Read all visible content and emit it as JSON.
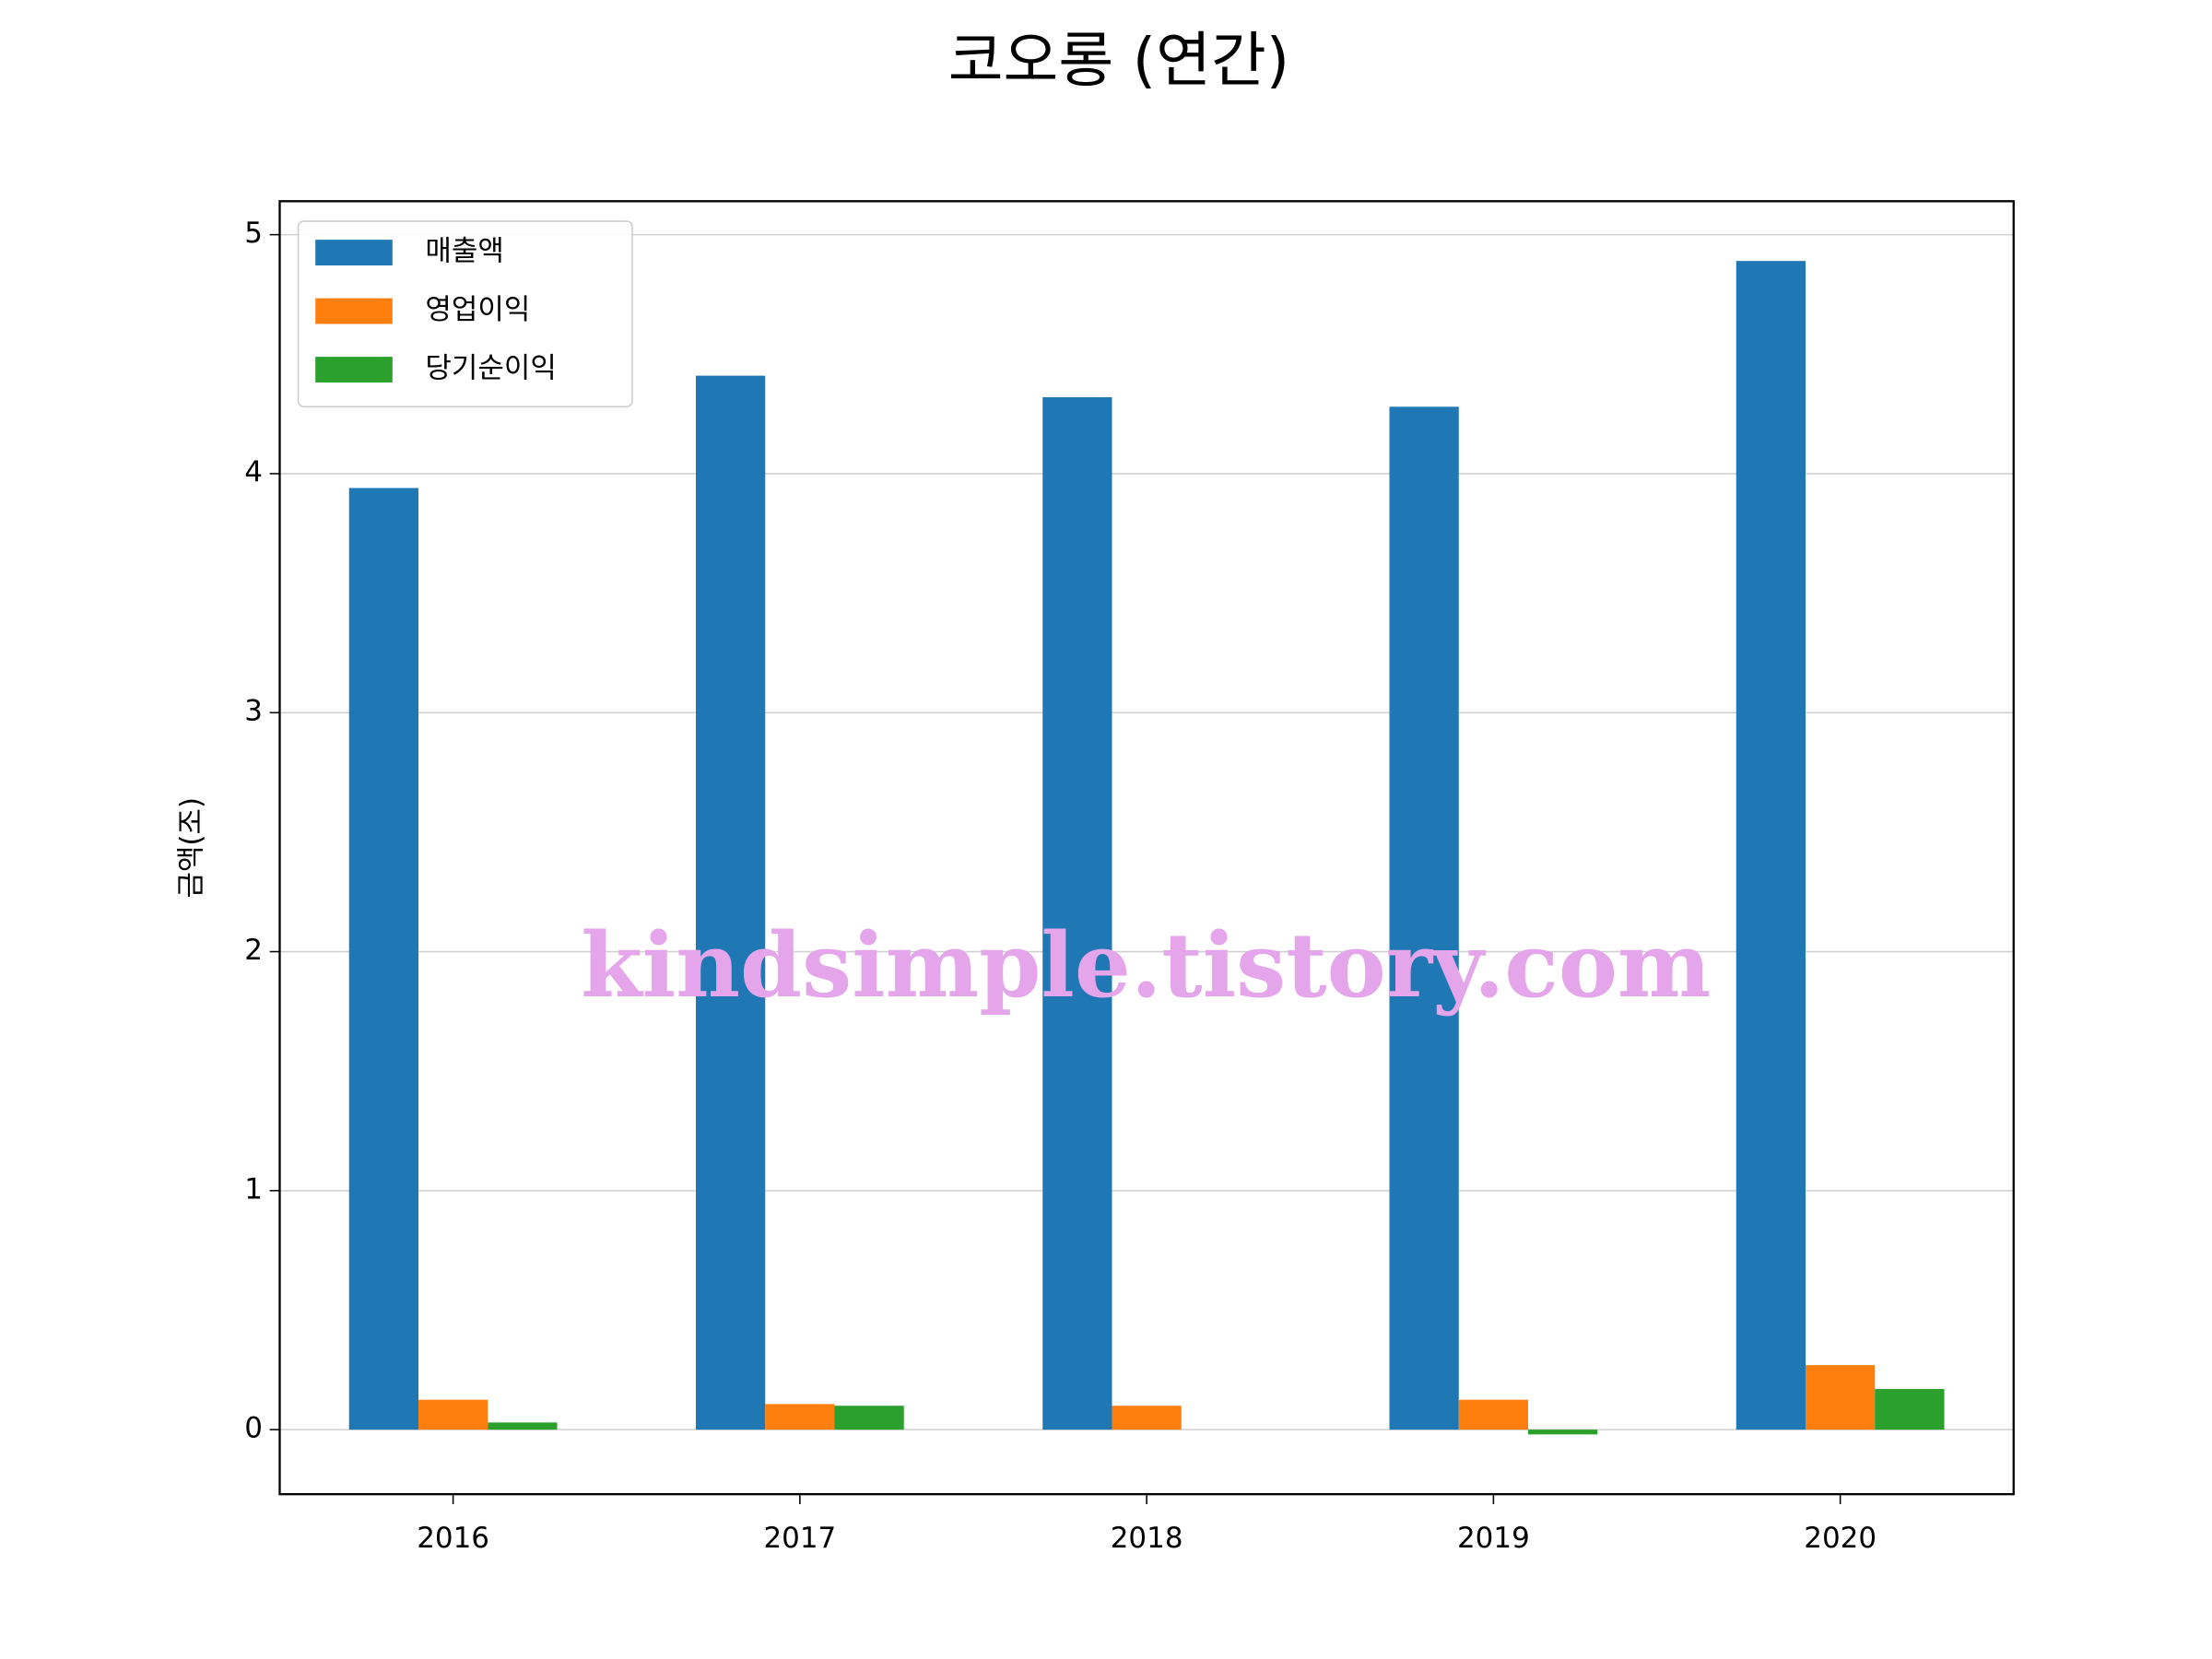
{
  "chart_data": {
    "type": "bar",
    "title": "코오롱 (연간)",
    "y_label": "금액(조)",
    "watermark": "kindsimple.tistory.com",
    "categories": [
      "2016",
      "2017",
      "2018",
      "2019",
      "2020"
    ],
    "series": [
      {
        "name": "매출액",
        "color": "#1f77b4",
        "values": [
          3.94,
          4.41,
          4.32,
          4.28,
          4.89
        ]
      },
      {
        "name": "영업이익",
        "color": "#ff7f0e",
        "values": [
          0.125,
          0.107,
          0.1,
          0.125,
          0.27
        ]
      },
      {
        "name": "당기순이익",
        "color": "#2ca02c",
        "values": [
          0.03,
          0.1,
          0,
          -0.02,
          0.17
        ]
      }
    ],
    "ylim": [
      -0.27,
      5.14
    ],
    "yticks": [
      0,
      1,
      2,
      3,
      4,
      5
    ],
    "grid": true,
    "legend": "upper left"
  }
}
